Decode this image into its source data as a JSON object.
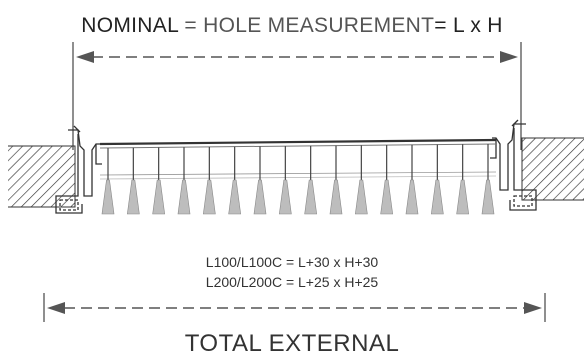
{
  "header": {
    "nominal_word": "NOMINAL",
    "equals_1": " = ",
    "hole_measurement": "HOLE MEASUREMENT",
    "equals_2": "= ",
    "dimension_expr": "L x H"
  },
  "formulas": [
    "L100/L100C = L+30 x H+30",
    "L200/L200C = L+25 x H+25"
  ],
  "footer": {
    "label": "TOTAL EXTERNAL"
  },
  "colors": {
    "line": "#555555",
    "hatch": "#333333",
    "blade_fill": "#bdbdbd",
    "text_dark": "#222222",
    "text_mid": "#555555"
  }
}
